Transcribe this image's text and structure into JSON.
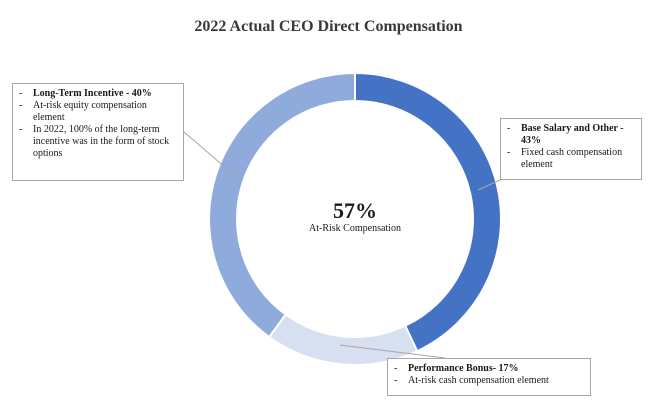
{
  "chart_data": {
    "type": "donut",
    "title": "2022 Actual CEO Direct Compensation",
    "center": {
      "value": "57%",
      "label": "At-Risk Compensation"
    },
    "segments": [
      {
        "name": "Base Salary and Other",
        "value": 43,
        "color": "#4472c4"
      },
      {
        "name": "Performance Bonus",
        "value": 17,
        "color": "#d6e0f1"
      },
      {
        "name": "Long-Term Incentive",
        "value": 40,
        "color": "#8fabdc"
      }
    ]
  },
  "callouts": {
    "lti": {
      "title": "Long-Term Incentive - 40%",
      "bullets": [
        "At-risk equity compensation element",
        "In 2022, 100% of the long-term incentive was in the form of stock options"
      ]
    },
    "base": {
      "title": "Base Salary and Other - 43%",
      "bullets": [
        "Fixed cash compensation element"
      ]
    },
    "perf": {
      "title": "Performance Bonus- 17%",
      "bullets": [
        "At-risk cash compensation element"
      ]
    }
  },
  "dash": "-"
}
